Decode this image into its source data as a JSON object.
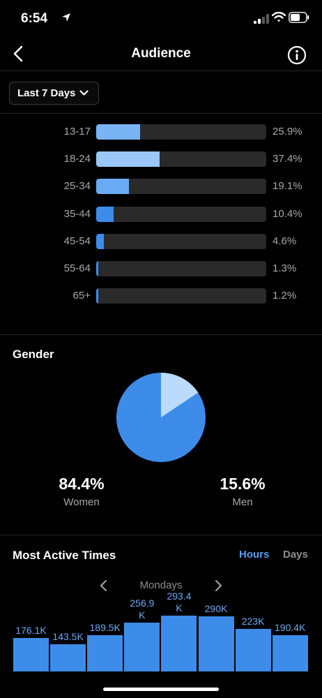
{
  "status": {
    "time": "6:54"
  },
  "nav": {
    "title": "Audience",
    "back_icon": "chevron-left-icon",
    "info_icon": "info-icon"
  },
  "range": {
    "label": "Last 7 Days"
  },
  "age_ranges": [
    {
      "label": "13-17",
      "value": "25.9%",
      "fraction": 0.259,
      "color": "#79b4f5"
    },
    {
      "label": "18-24",
      "value": "37.4%",
      "fraction": 0.374,
      "color": "#9ac6f8"
    },
    {
      "label": "25-34",
      "value": "19.1%",
      "fraction": 0.191,
      "color": "#6aaaf2"
    },
    {
      "label": "35-44",
      "value": "10.4%",
      "fraction": 0.104,
      "color": "#3d8ce9"
    },
    {
      "label": "45-54",
      "value": "4.6%",
      "fraction": 0.046,
      "color": "#3d8ce9"
    },
    {
      "label": "55-64",
      "value": "1.3%",
      "fraction": 0.013,
      "color": "#3d8ce9"
    },
    {
      "label": "65+",
      "value": "1.2%",
      "fraction": 0.012,
      "color": "#3d8ce9"
    }
  ],
  "gender": {
    "title": "Gender",
    "women": {
      "value": "84.4%",
      "label": "Women",
      "fraction": 0.844,
      "color": "#3d8ce9"
    },
    "men": {
      "value": "15.6%",
      "label": "Men",
      "fraction": 0.156,
      "color": "#bcdafb"
    }
  },
  "most_active": {
    "title": "Most Active Times",
    "hours_label": "Hours",
    "days_label": "Days",
    "selected_toggle": "Hours",
    "day": "Mondays",
    "bars": [
      {
        "label": "176.1K",
        "value": 176100
      },
      {
        "label": "143.5K",
        "value": 143500
      },
      {
        "label": "189.5K",
        "value": 189500
      },
      {
        "label": "256.9 K",
        "value": 256900
      },
      {
        "label": "293.4 K",
        "value": 293400
      },
      {
        "label": "290K",
        "value": 290000
      },
      {
        "label": "223K",
        "value": 223000
      },
      {
        "label": "190.4K",
        "value": 190400
      }
    ]
  },
  "colors": {
    "accent": "#3d8ce9",
    "muted": "#a8a8a8",
    "track": "#2a2a2a"
  }
}
